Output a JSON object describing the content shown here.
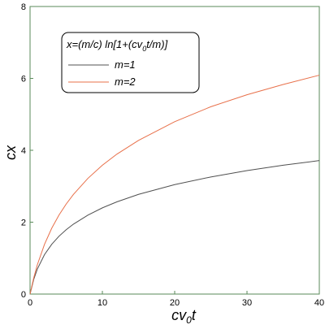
{
  "chart_data": {
    "type": "line",
    "xlim": [
      0,
      40
    ],
    "ylim": [
      0,
      8
    ],
    "x_ticks": [
      0,
      10,
      20,
      30,
      40
    ],
    "y_ticks": [
      0,
      2,
      4,
      6,
      8
    ],
    "grid": false,
    "frame_color": "#5a8a5a",
    "legend_placement": "top-left",
    "xlabel": {
      "base": "cv",
      "sub": "0",
      "tail": "t"
    },
    "ylabel": "cx",
    "legend_title": {
      "a": "x=(m/c) ln[1+(cv",
      "sub": "0",
      "b": "t/m)]"
    },
    "series": [
      {
        "name": "m=1",
        "color": "#505050",
        "x": [
          0,
          0.5,
          1,
          2,
          3,
          4,
          5,
          6,
          8,
          10,
          12,
          15,
          20,
          25,
          30,
          35,
          40
        ],
        "y": [
          0,
          0.405,
          0.693,
          1.099,
          1.386,
          1.609,
          1.792,
          1.946,
          2.197,
          2.398,
          2.565,
          2.773,
          3.045,
          3.258,
          3.434,
          3.584,
          3.714
        ]
      },
      {
        "name": "m=2",
        "color": "#e8704a",
        "x": [
          0,
          0.5,
          1,
          2,
          3,
          4,
          5,
          6,
          8,
          10,
          12,
          15,
          20,
          25,
          30,
          35,
          40
        ],
        "y": [
          0,
          0.446,
          0.811,
          1.386,
          1.833,
          2.197,
          2.506,
          2.773,
          3.219,
          3.584,
          3.892,
          4.275,
          4.796,
          5.212,
          5.545,
          5.831,
          6.089
        ]
      }
    ]
  }
}
